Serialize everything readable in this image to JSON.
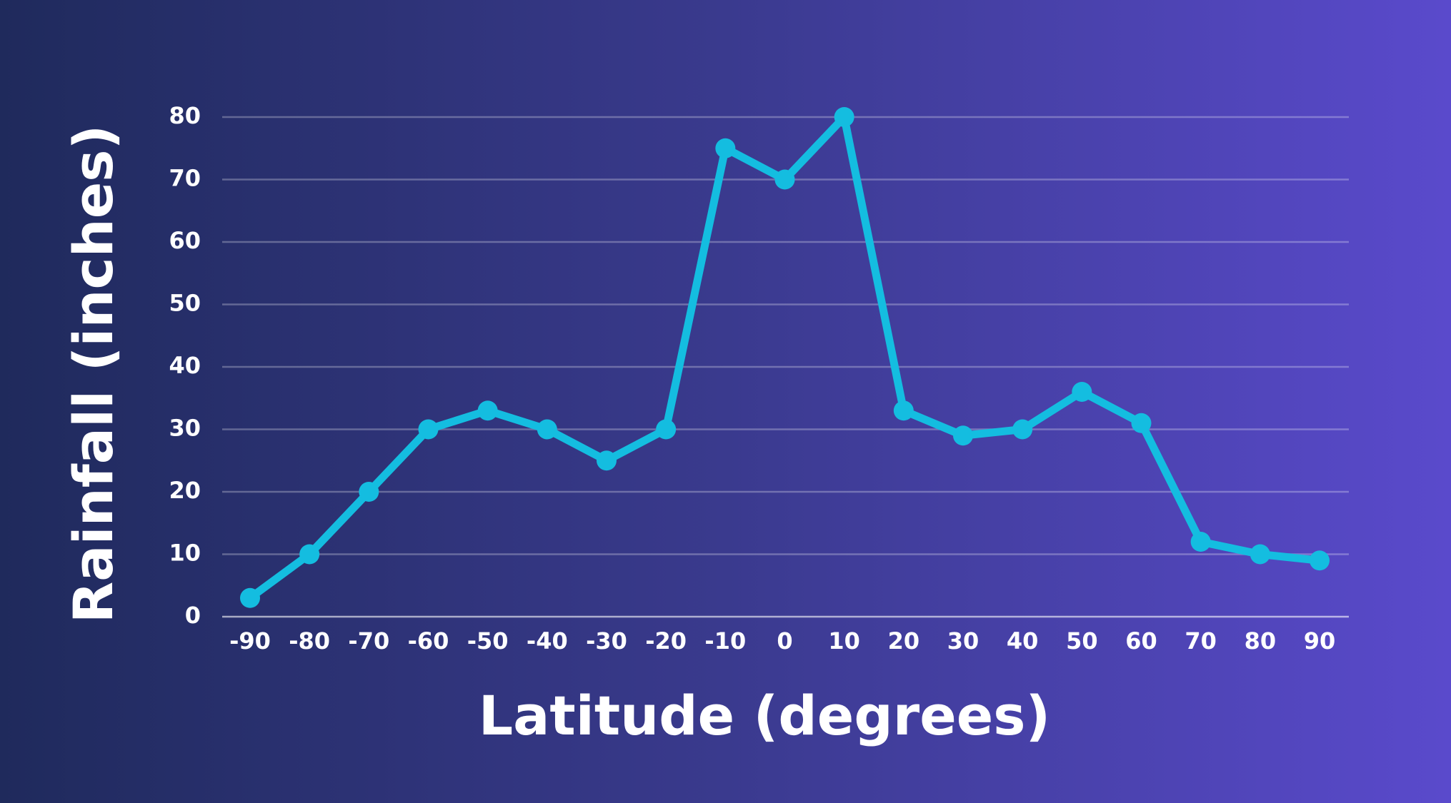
{
  "chart_data": {
    "type": "line",
    "x_label": "Latitude (degrees)",
    "y_label": "Rainfall (inches)",
    "categories": [
      "-90",
      "-80",
      "-70",
      "-60",
      "-50",
      "-40",
      "-30",
      "-20",
      "-10",
      "0",
      "10",
      "20",
      "30",
      "40",
      "50",
      "60",
      "70",
      "80",
      "90"
    ],
    "values": [
      3,
      10,
      20,
      30,
      33,
      30,
      25,
      30,
      75,
      70,
      80,
      33,
      29,
      30,
      36,
      31,
      12,
      10,
      9
    ],
    "color": "#14bde0",
    "ylim": [
      0,
      80
    ],
    "yticks": [
      0,
      10,
      20,
      30,
      40,
      50,
      60,
      70,
      80
    ],
    "grid": true
  }
}
